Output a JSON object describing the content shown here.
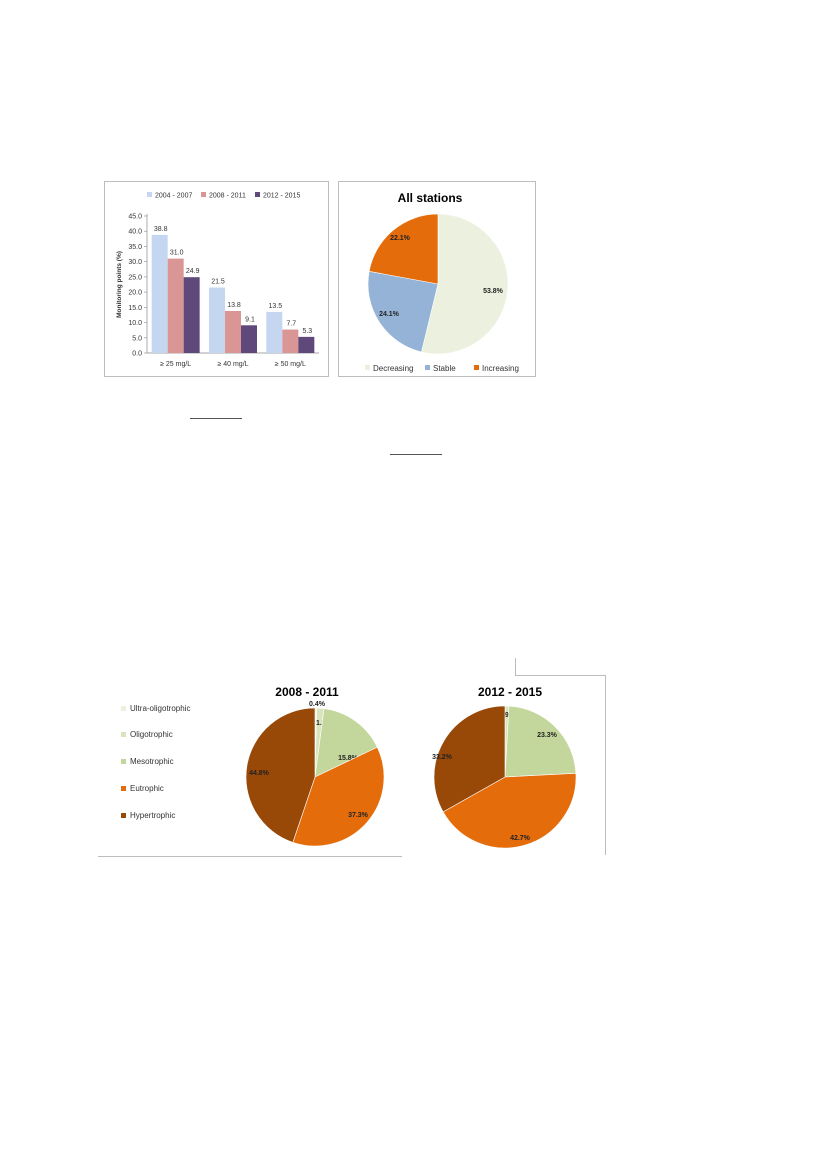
{
  "chart_data": [
    {
      "type": "bar",
      "categories": [
        "≥ 25 mg/L",
        "≥ 40 mg/L",
        "≥ 50 mg/L"
      ],
      "series": [
        {
          "name": "2004 - 2007",
          "values": [
            38.8,
            21.5,
            13.5
          ],
          "color": "#c5d7f0"
        },
        {
          "name": "2008 - 2011",
          "values": [
            31.0,
            13.8,
            7.7
          ],
          "color": "#d99694"
        },
        {
          "name": "2012 - 2015",
          "values": [
            24.9,
            9.1,
            5.3
          ],
          "color": "#5f497a"
        }
      ],
      "value_labels": [
        [
          "38.8",
          "21.5",
          "13.5"
        ],
        [
          "31.0",
          "13.8",
          "7.7"
        ],
        [
          "24.9",
          "9.1",
          "5.3"
        ]
      ],
      "ylabel": "Monitoring points (%)",
      "ylim": [
        0,
        45
      ],
      "yticks": [
        0,
        5,
        10,
        15,
        20,
        25,
        30,
        35,
        40,
        45
      ],
      "ytick_labels": [
        "0.0",
        "5.0",
        "10.0",
        "15.0",
        "20.0",
        "25.0",
        "30.0",
        "35.0",
        "40.0",
        "45.0"
      ],
      "legend": "top",
      "grid": false
    },
    {
      "type": "pie",
      "title": "All stations",
      "slices": [
        {
          "label": "Decreasing",
          "value": 53.8,
          "text": "53.8%",
          "color": "#ebf1de"
        },
        {
          "label": "Stable",
          "value": 24.1,
          "text": "24.1%",
          "color": "#95b3d7"
        },
        {
          "label": "Increasing",
          "value": 22.1,
          "text": "22.1%",
          "color": "#e46c0a"
        }
      ],
      "legend": "bottom"
    },
    {
      "type": "pie",
      "title": "2008 - 2011",
      "slices": [
        {
          "label": "Ultra-oligotrophic",
          "value": 0.4,
          "text": "0.4%",
          "color": "#ebf1de"
        },
        {
          "label": "Oligotrophic",
          "value": 1.7,
          "text": "1.7%",
          "color": "#d7e4bd"
        },
        {
          "label": "Mesotrophic",
          "value": 15.8,
          "text": "15.8%",
          "color": "#c3d69b"
        },
        {
          "label": "Eutrophic",
          "value": 37.3,
          "text": "37.3%",
          "color": "#e46c0a"
        },
        {
          "label": "Hypertrophic",
          "value": 44.8,
          "text": "44.8%",
          "color": "#984807"
        }
      ],
      "legend": "left"
    },
    {
      "type": "pie",
      "title": "2012 - 2015",
      "slices": [
        {
          "label": "Ultra-oligotrophic",
          "value": 0.0,
          "text": "",
          "color": "#ebf1de"
        },
        {
          "label": "Oligotrophic",
          "value": 0.9,
          "text": "0.9%",
          "color": "#d7e4bd"
        },
        {
          "label": "Mesotrophic",
          "value": 23.3,
          "text": "23.3%",
          "color": "#c3d69b"
        },
        {
          "label": "Eutrophic",
          "value": 42.7,
          "text": "42.7%",
          "color": "#e46c0a"
        },
        {
          "label": "Hypertrophic",
          "value": 33.2,
          "text": "33.2%",
          "color": "#984807"
        }
      ]
    }
  ]
}
